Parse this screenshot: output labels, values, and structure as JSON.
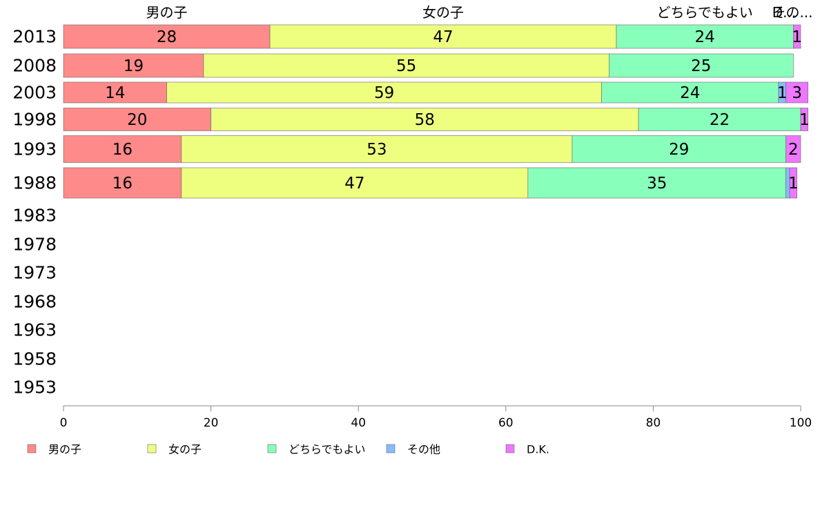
{
  "chart_data": {
    "type": "bar",
    "orientation": "horizontal-stacked",
    "categories": [
      "2013",
      "2008",
      "2003",
      "1998",
      "1993",
      "1988",
      "1983",
      "1978",
      "1973",
      "1968",
      "1963",
      "1958",
      "1953"
    ],
    "series": [
      {
        "name": "男の子",
        "color": "#ff8a8a",
        "values": [
          28,
          19,
          14,
          20,
          16,
          16,
          null,
          null,
          null,
          null,
          null,
          null,
          null
        ]
      },
      {
        "name": "女の子",
        "color": "#eeff80",
        "values": [
          47,
          55,
          59,
          58,
          53,
          47,
          null,
          null,
          null,
          null,
          null,
          null,
          null
        ]
      },
      {
        "name": "どちらでもよい",
        "color": "#88ffbb",
        "values": [
          24,
          25,
          24,
          22,
          29,
          35,
          null,
          null,
          null,
          null,
          null,
          null,
          null
        ]
      },
      {
        "name": "その他",
        "color": "#88bbff",
        "values": [
          0,
          0,
          1,
          0,
          0,
          0.5,
          null,
          null,
          null,
          null,
          null,
          null,
          null
        ]
      },
      {
        "name": "D.K.",
        "color": "#ee77ff",
        "values": [
          1,
          0,
          3,
          1,
          2,
          1,
          null,
          null,
          null,
          null,
          null,
          null,
          null
        ]
      }
    ],
    "segment_labels": [
      [
        "28",
        "47",
        "24",
        "",
        "1"
      ],
      [
        "19",
        "55",
        "25",
        "",
        ""
      ],
      [
        "14",
        "59",
        "24",
        "1",
        "3"
      ],
      [
        "20",
        "58",
        "22",
        "",
        "1"
      ],
      [
        "16",
        "53",
        "29",
        "",
        "2"
      ],
      [
        "16",
        "47",
        "35",
        "",
        "1"
      ]
    ],
    "top_labels": [
      "男の子",
      "女の子",
      "どちらでもよい",
      "その...",
      "D..."
    ],
    "xlim": [
      0,
      100
    ],
    "xticks": [
      0,
      20,
      40,
      60,
      80,
      100
    ],
    "legend_position": "bottom",
    "grid": false
  }
}
